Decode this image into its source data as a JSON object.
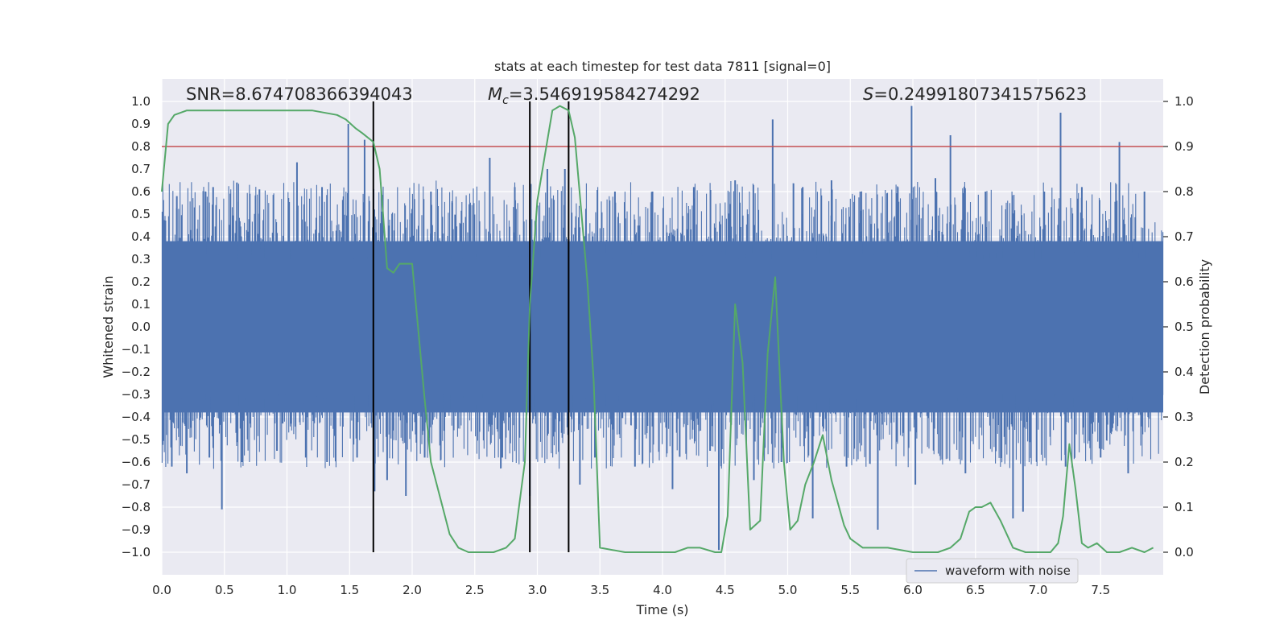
{
  "chart_data": {
    "type": "line",
    "title": "stats at each timestep for test data 7811 [signal=0]",
    "xlabel": "Time (s)",
    "ylabel_left": "Whitened strain",
    "ylabel_right": "Detection probability",
    "xlim": [
      0,
      8
    ],
    "ylim_left": [
      -1.1,
      1.1
    ],
    "ylim_right": [
      -0.05,
      1.05
    ],
    "x_ticks": [
      "0.0",
      "0.5",
      "1.0",
      "1.5",
      "2.0",
      "2.5",
      "3.0",
      "3.5",
      "4.0",
      "4.5",
      "5.0",
      "5.5",
      "6.0",
      "6.5",
      "7.0",
      "7.5"
    ],
    "y_left_ticks": [
      "1.0",
      "0.9",
      "0.8",
      "0.7",
      "0.6",
      "0.5",
      "0.4",
      "0.3",
      "0.2",
      "0.1",
      "0.0",
      "−0.1",
      "−0.2",
      "−0.3",
      "−0.4",
      "−0.5",
      "−0.6",
      "−0.7",
      "−0.8",
      "−0.9",
      "−1.0"
    ],
    "y_right_ticks": [
      "1.0",
      "0.9",
      "0.8",
      "0.7",
      "0.6",
      "0.5",
      "0.4",
      "0.3",
      "0.2",
      "0.1",
      "0.0"
    ],
    "annotations": {
      "snr": "SNR=8.674708366394043",
      "mc_symbol": "M",
      "mc_sub": "c",
      "mc_value": "=3.546919584274292",
      "s_symbol": "S",
      "s_value": "=0.24991807341575623"
    },
    "legend": [
      "waveform with noise"
    ],
    "threshold": 0.9,
    "vertical_lines": [
      1.69,
      2.94,
      3.25
    ],
    "waveform": {
      "name": "waveform with noise",
      "color": "#4c72b0",
      "dense_band": [
        -0.38,
        0.38
      ],
      "spikes": [
        [
          0.08,
          -0.62
        ],
        [
          0.12,
          0.58
        ],
        [
          0.2,
          -0.65
        ],
        [
          0.35,
          0.6
        ],
        [
          0.38,
          -0.58
        ],
        [
          0.41,
          0.62
        ],
        [
          0.48,
          -0.81
        ],
        [
          0.6,
          0.64
        ],
        [
          0.64,
          -0.6
        ],
        [
          0.78,
          0.61
        ],
        [
          0.92,
          -0.55
        ],
        [
          1.08,
          0.73
        ],
        [
          1.15,
          -0.58
        ],
        [
          1.28,
          0.62
        ],
        [
          1.32,
          -0.6
        ],
        [
          1.49,
          0.9
        ],
        [
          1.56,
          -0.58
        ],
        [
          1.62,
          0.83
        ],
        [
          1.7,
          -0.73
        ],
        [
          1.8,
          -0.68
        ],
        [
          1.95,
          -0.75
        ],
        [
          2.1,
          -0.58
        ],
        [
          2.15,
          0.6
        ],
        [
          2.32,
          0.55
        ],
        [
          2.62,
          0.75
        ],
        [
          2.72,
          -0.58
        ],
        [
          2.82,
          0.62
        ],
        [
          2.94,
          -0.75
        ],
        [
          3.08,
          0.7
        ],
        [
          3.22,
          0.7
        ],
        [
          3.34,
          -0.7
        ],
        [
          3.46,
          -0.58
        ],
        [
          3.62,
          0.6
        ],
        [
          3.78,
          -0.62
        ],
        [
          3.92,
          0.6
        ],
        [
          4.08,
          -0.72
        ],
        [
          4.25,
          0.62
        ],
        [
          4.38,
          -0.55
        ],
        [
          4.45,
          -0.99
        ],
        [
          4.58,
          0.65
        ],
        [
          4.73,
          -0.68
        ],
        [
          4.88,
          0.92
        ],
        [
          4.95,
          -0.6
        ],
        [
          5.12,
          0.62
        ],
        [
          5.2,
          -0.85
        ],
        [
          5.35,
          0.65
        ],
        [
          5.47,
          -0.62
        ],
        [
          5.58,
          0.6
        ],
        [
          5.72,
          -0.9
        ],
        [
          5.88,
          0.62
        ],
        [
          5.99,
          0.98
        ],
        [
          6.02,
          -0.7
        ],
        [
          6.18,
          0.66
        ],
        [
          6.3,
          0.85
        ],
        [
          6.42,
          -0.65
        ],
        [
          6.58,
          0.6
        ],
        [
          6.8,
          -0.85
        ],
        [
          6.88,
          -0.82
        ],
        [
          7.05,
          0.6
        ],
        [
          7.18,
          0.95
        ],
        [
          7.22,
          -0.62
        ],
        [
          7.35,
          0.62
        ],
        [
          7.5,
          -0.58
        ],
        [
          7.65,
          0.82
        ],
        [
          7.72,
          -0.65
        ],
        [
          7.85,
          0.6
        ]
      ]
    },
    "detection_probability": {
      "color": "#55a868",
      "x": [
        0.0,
        0.05,
        0.1,
        0.2,
        0.4,
        0.8,
        1.2,
        1.4,
        1.47,
        1.55,
        1.6,
        1.69,
        1.74,
        1.8,
        1.85,
        1.9,
        1.95,
        2.0,
        2.1,
        2.15,
        2.3,
        2.37,
        2.45,
        2.6,
        2.65,
        2.75,
        2.82,
        2.9,
        2.94,
        3.0,
        3.06,
        3.12,
        3.18,
        3.25,
        3.3,
        3.4,
        3.45,
        3.5,
        3.7,
        3.9,
        4.1,
        4.2,
        4.3,
        4.42,
        4.47,
        4.52,
        4.58,
        4.64,
        4.7,
        4.78,
        4.84,
        4.9,
        4.97,
        5.02,
        5.08,
        5.14,
        5.21,
        5.28,
        5.35,
        5.45,
        5.5,
        5.6,
        5.8,
        6.0,
        6.2,
        6.3,
        6.38,
        6.45,
        6.5,
        6.55,
        6.62,
        6.7,
        6.8,
        6.9,
        7.0,
        7.1,
        7.16,
        7.2,
        7.25,
        7.3,
        7.35,
        7.4,
        7.47,
        7.55,
        7.65,
        7.75,
        7.85,
        7.92
      ],
      "y": [
        0.8,
        0.95,
        0.97,
        0.98,
        0.98,
        0.98,
        0.98,
        0.97,
        0.96,
        0.94,
        0.93,
        0.91,
        0.85,
        0.63,
        0.62,
        0.64,
        0.64,
        0.64,
        0.34,
        0.2,
        0.04,
        0.01,
        0.0,
        0.0,
        0.0,
        0.01,
        0.03,
        0.2,
        0.55,
        0.78,
        0.88,
        0.98,
        0.99,
        0.98,
        0.92,
        0.6,
        0.38,
        0.01,
        0.0,
        0.0,
        0.0,
        0.01,
        0.01,
        0.0,
        0.0,
        0.08,
        0.55,
        0.42,
        0.05,
        0.07,
        0.44,
        0.61,
        0.2,
        0.05,
        0.07,
        0.15,
        0.2,
        0.26,
        0.16,
        0.06,
        0.03,
        0.01,
        0.01,
        0.0,
        0.0,
        0.01,
        0.03,
        0.09,
        0.1,
        0.1,
        0.11,
        0.07,
        0.01,
        0.0,
        0.0,
        0.0,
        0.02,
        0.08,
        0.24,
        0.14,
        0.02,
        0.01,
        0.02,
        0.0,
        0.0,
        0.01,
        0.0,
        0.01
      ]
    }
  }
}
